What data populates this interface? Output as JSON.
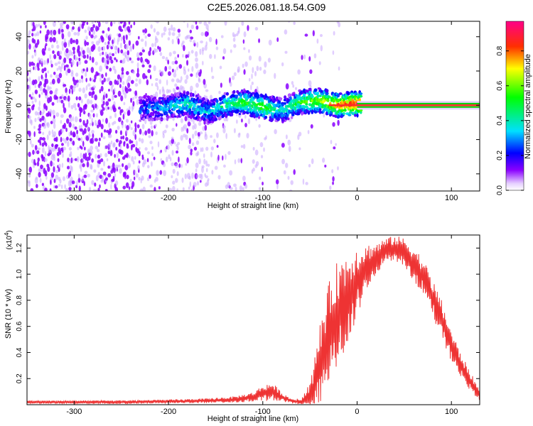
{
  "title": "C2E5.2026.081.18.54.G09",
  "chart_data": [
    {
      "type": "heatmap",
      "name": "spectrogram",
      "xlabel": "Height of straight line (km)",
      "ylabel": "Frequency (Hz)",
      "xlim": [
        -350,
        130
      ],
      "ylim": [
        -50,
        49
      ],
      "xticks": [
        -300,
        -200,
        -100,
        0,
        100
      ],
      "yticks": [
        -40,
        -20,
        0,
        20,
        40
      ],
      "colorbar": {
        "label": "Normalized spectral amplitude",
        "range": [
          0.0,
          0.97
        ],
        "ticks": [
          "0.0",
          "0.2",
          "0.4",
          "0.6",
          "0.8"
        ],
        "tick_values": [
          0.0,
          0.2,
          0.4,
          0.6,
          0.8
        ]
      },
      "ridge": {
        "description": "dominant signal near 0 Hz",
        "x": [
          -225,
          -200,
          -180,
          -160,
          -140,
          -120,
          -100,
          -80,
          -60,
          -40,
          -20,
          0,
          50,
          130
        ],
        "freq_hz": [
          -2,
          -1,
          1,
          -4,
          0,
          2,
          -1,
          -3,
          2,
          3,
          0,
          1,
          0,
          0
        ],
        "amplitude": [
          0.25,
          0.35,
          0.45,
          0.35,
          0.45,
          0.55,
          0.6,
          0.4,
          0.55,
          0.65,
          0.85,
          0.95,
          0.97,
          0.97
        ]
      },
      "colors": {
        "noise": "#8a00ff",
        "weak": "#c9a6ff",
        "line_core": "#ff2a2a",
        "line_edge": "#00d000"
      }
    },
    {
      "type": "line",
      "name": "snr",
      "xlabel": "Height of straight line (km)",
      "ylabel": "SNR (10 * v/v)",
      "scale_label": "(x10",
      "scale_exp": "4",
      "xlim": [
        -350,
        130
      ],
      "ylim": [
        0,
        1.3
      ],
      "xticks": [
        -300,
        -200,
        -100,
        0,
        100
      ],
      "yticks": [
        0.2,
        0.4,
        0.6,
        0.8,
        1.0,
        1.2
      ],
      "ytick_labels": [
        "0.2",
        "0.4",
        "0.6",
        "0.8",
        "1.0",
        "1.2"
      ],
      "envelope": {
        "x": [
          -350,
          -300,
          -250,
          -200,
          -160,
          -130,
          -110,
          -100,
          -90,
          -80,
          -70,
          -60,
          -50,
          -45,
          -40,
          -30,
          -20,
          -10,
          0,
          10,
          20,
          30,
          40,
          50,
          60,
          70,
          80,
          90,
          100,
          110,
          120,
          130
        ],
        "center": [
          0.02,
          0.02,
          0.02,
          0.025,
          0.03,
          0.04,
          0.06,
          0.09,
          0.1,
          0.06,
          0.03,
          0.02,
          0.05,
          0.15,
          0.3,
          0.55,
          0.7,
          0.82,
          0.95,
          1.05,
          1.12,
          1.18,
          1.2,
          1.17,
          1.08,
          0.98,
          0.82,
          0.65,
          0.45,
          0.3,
          0.18,
          0.07
        ],
        "spread": [
          0.01,
          0.01,
          0.012,
          0.012,
          0.015,
          0.02,
          0.03,
          0.05,
          0.06,
          0.03,
          0.015,
          0.02,
          0.1,
          0.18,
          0.25,
          0.32,
          0.35,
          0.3,
          0.22,
          0.15,
          0.1,
          0.08,
          0.08,
          0.09,
          0.11,
          0.12,
          0.12,
          0.12,
          0.1,
          0.08,
          0.06,
          0.04
        ]
      },
      "color": "#ee3333"
    }
  ]
}
